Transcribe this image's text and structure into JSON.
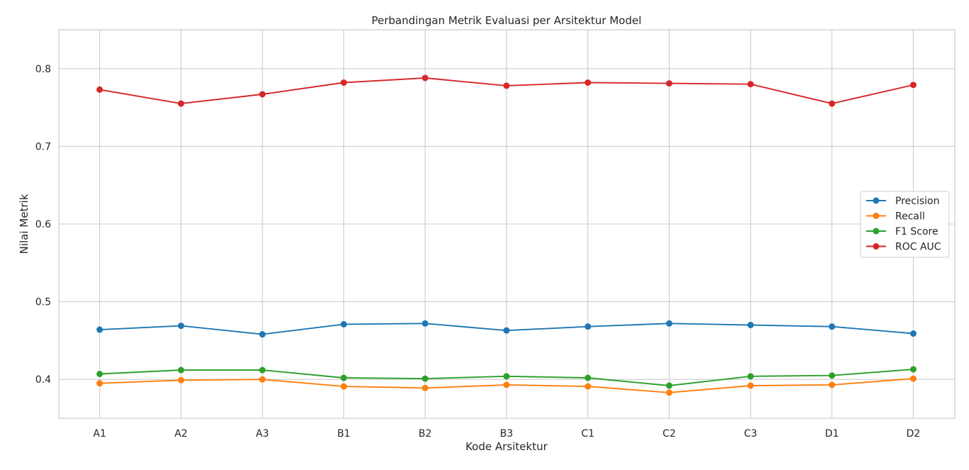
{
  "chart_data": {
    "type": "line",
    "title": "Perbandingan Metrik Evaluasi per Arsitektur Model",
    "xlabel": "Kode Arsitektur",
    "ylabel": "Nilai Metrik",
    "categories": [
      "A1",
      "A2",
      "A3",
      "B1",
      "B2",
      "B3",
      "C1",
      "C2",
      "C3",
      "D1",
      "D2"
    ],
    "ylim": [
      0.35,
      0.85
    ],
    "yticks": [
      "0.4",
      "0.5",
      "0.6",
      "0.7",
      "0.8"
    ],
    "grid": true,
    "legend_position": "center-right",
    "series": [
      {
        "name": "Precision",
        "color": "#1f77b4",
        "marker": "circle",
        "values": [
          0.464,
          0.469,
          0.458,
          0.471,
          0.472,
          0.463,
          0.468,
          0.472,
          0.47,
          0.468,
          0.459
        ]
      },
      {
        "name": "Recall",
        "color": "#ff7f0e",
        "marker": "circle",
        "values": [
          0.395,
          0.399,
          0.4,
          0.391,
          0.389,
          0.393,
          0.391,
          0.383,
          0.392,
          0.393,
          0.401
        ]
      },
      {
        "name": "F1 Score",
        "color": "#2ca02c",
        "marker": "circle",
        "values": [
          0.407,
          0.412,
          0.412,
          0.402,
          0.401,
          0.404,
          0.402,
          0.392,
          0.404,
          0.405,
          0.413
        ]
      },
      {
        "name": "ROC AUC",
        "color": "#d62728",
        "marker": "circle",
        "values": [
          0.773,
          0.755,
          0.767,
          0.782,
          0.788,
          0.778,
          0.782,
          0.781,
          0.78,
          0.755,
          0.779
        ]
      }
    ]
  }
}
